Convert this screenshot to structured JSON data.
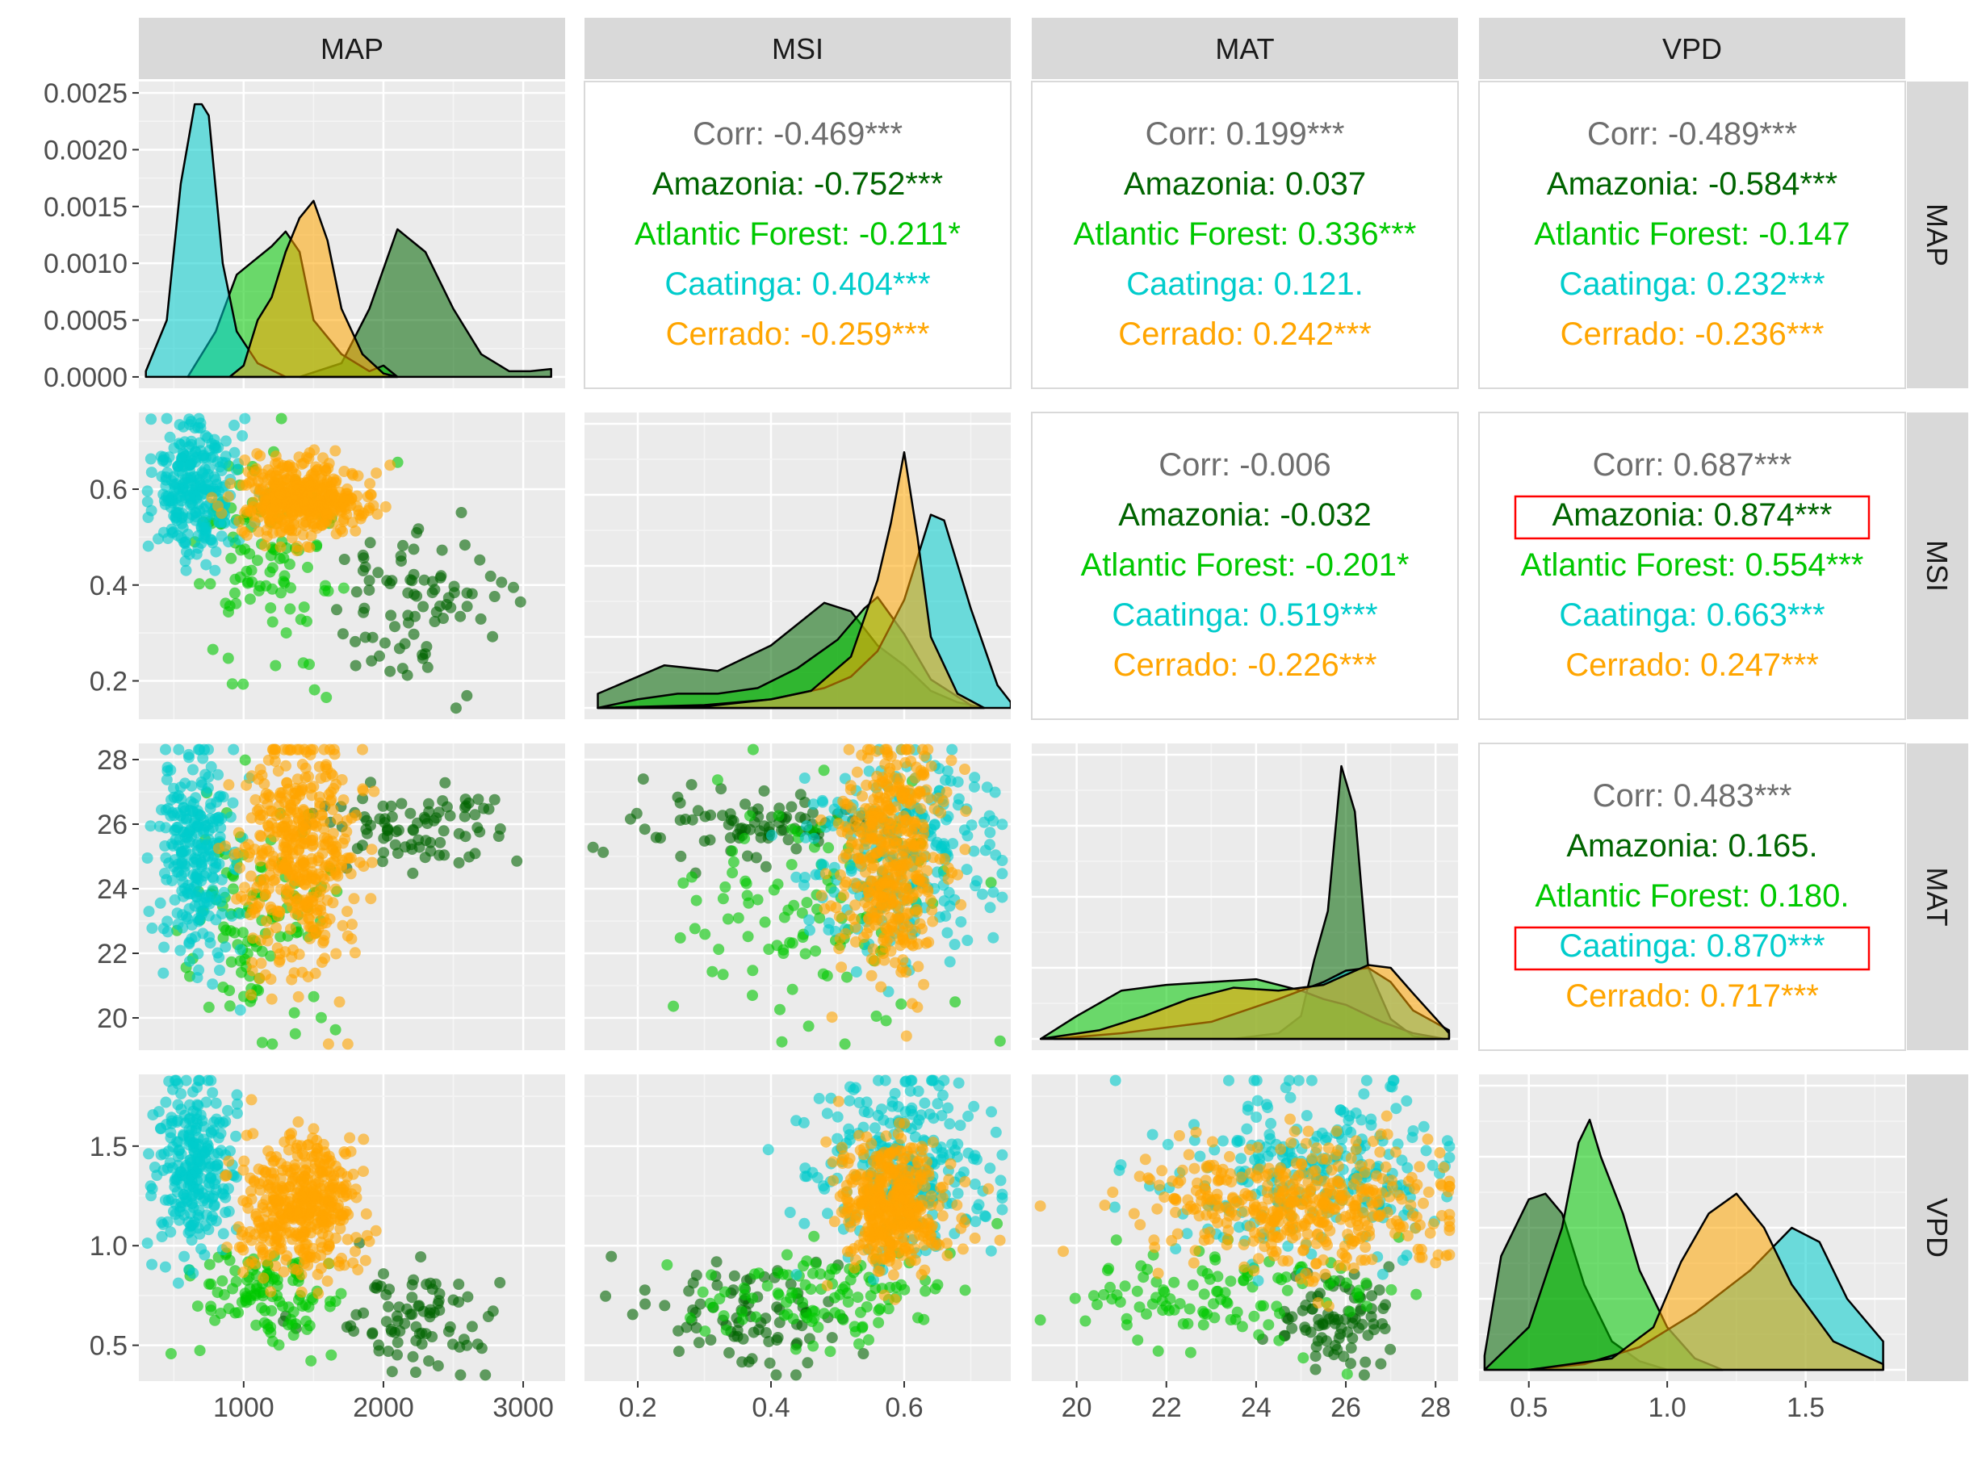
{
  "chart_data": {
    "type": "scatter",
    "variables": [
      "MAP",
      "MSI",
      "MAT",
      "VPD"
    ],
    "groups": [
      {
        "name": "Amazonia",
        "color": "#006400"
      },
      {
        "name": "Atlantic Forest",
        "color": "#00c800"
      },
      {
        "name": "Caatinga",
        "color": "#00cccc"
      },
      {
        "name": "Cerrado",
        "color": "#ffa500"
      }
    ],
    "corr_color": "#6e6e6e",
    "highlight_color": "#ff0000",
    "axes": {
      "MAP": {
        "lim": [
          250,
          3300
        ],
        "ticks": [
          1000,
          2000,
          3000
        ],
        "tick_labels": [
          "1000",
          "2000",
          "3000"
        ]
      },
      "MSI": {
        "lim": [
          0.12,
          0.76
        ],
        "ticks": [
          0.2,
          0.4,
          0.6
        ],
        "tick_labels": [
          "0.2",
          "0.4",
          "0.6"
        ]
      },
      "MAT": {
        "lim": [
          19.0,
          28.5
        ],
        "ticks": [
          20,
          22,
          24,
          26,
          28
        ],
        "tick_labels": [
          "20",
          "22",
          "24",
          "26",
          "28"
        ]
      },
      "VPD": {
        "lim": [
          0.32,
          1.86
        ],
        "ticks": [
          0.5,
          1.0,
          1.5
        ],
        "tick_labels": [
          "0.5",
          "1.0",
          "1.5"
        ]
      }
    },
    "density_axis": {
      "lim": [
        -0.0001,
        0.0026
      ],
      "ticks": [
        0,
        0.0005,
        0.001,
        0.0015,
        0.002,
        0.0025
      ],
      "tick_labels": [
        "0.0000",
        "0.0005",
        "0.0010",
        "0.0015",
        "0.0020",
        "0.0025"
      ]
    },
    "densities": {
      "MAP": {
        "Amazonia": [
          [
            1400,
            0
          ],
          [
            1700,
            0.00012
          ],
          [
            1900,
            0.0006
          ],
          [
            2100,
            0.0013
          ],
          [
            2300,
            0.0011
          ],
          [
            2500,
            0.0006
          ],
          [
            2700,
            0.0002
          ],
          [
            2900,
            5e-05
          ],
          [
            3050,
            5e-05
          ],
          [
            3200,
            7e-05
          ]
        ],
        "Atlantic Forest": [
          [
            600,
            0
          ],
          [
            800,
            0.0004
          ],
          [
            950,
            0.0009
          ],
          [
            1050,
            0.001
          ],
          [
            1200,
            0.00115
          ],
          [
            1300,
            0.00128
          ],
          [
            1400,
            0.0011
          ],
          [
            1500,
            0.0005
          ],
          [
            1700,
            0.0002
          ],
          [
            1900,
            5e-05
          ],
          [
            2000,
            0.0001
          ],
          [
            2100,
            0
          ]
        ],
        "Caatinga": [
          [
            300,
            5e-05
          ],
          [
            450,
            0.0005
          ],
          [
            550,
            0.0017
          ],
          [
            650,
            0.0024
          ],
          [
            700,
            0.0024
          ],
          [
            750,
            0.0023
          ],
          [
            850,
            0.001
          ],
          [
            950,
            0.0004
          ],
          [
            1100,
            0.00012
          ],
          [
            1300,
            0
          ]
        ],
        "Cerrado": [
          [
            900,
            0
          ],
          [
            1000,
            0.0001
          ],
          [
            1100,
            0.0005
          ],
          [
            1200,
            0.0007
          ],
          [
            1300,
            0.0011
          ],
          [
            1400,
            0.0014
          ],
          [
            1500,
            0.00155
          ],
          [
            1600,
            0.0012
          ],
          [
            1700,
            0.0006
          ],
          [
            1850,
            0.0002
          ],
          [
            2000,
            3e-05
          ],
          [
            2100,
            0
          ]
        ]
      },
      "MSI": {
        "Amazonia": [
          [
            0.14,
            0.05
          ],
          [
            0.24,
            0.15
          ],
          [
            0.32,
            0.13
          ],
          [
            0.4,
            0.22
          ],
          [
            0.48,
            0.37
          ],
          [
            0.52,
            0.34
          ],
          [
            0.56,
            0.22
          ],
          [
            0.6,
            0.15
          ],
          [
            0.64,
            0.06
          ],
          [
            0.68,
            0.02
          ],
          [
            0.72,
            0
          ]
        ],
        "Atlantic Forest": [
          [
            0.14,
            0
          ],
          [
            0.2,
            0.03
          ],
          [
            0.26,
            0.05
          ],
          [
            0.32,
            0.05
          ],
          [
            0.38,
            0.07
          ],
          [
            0.44,
            0.14
          ],
          [
            0.5,
            0.24
          ],
          [
            0.54,
            0.35
          ],
          [
            0.56,
            0.39
          ],
          [
            0.6,
            0.26
          ],
          [
            0.64,
            0.1
          ],
          [
            0.7,
            0.01
          ]
        ],
        "Caatinga": [
          [
            0.14,
            0
          ],
          [
            0.3,
            0.01
          ],
          [
            0.4,
            0.03
          ],
          [
            0.48,
            0.07
          ],
          [
            0.52,
            0.11
          ],
          [
            0.56,
            0.2
          ],
          [
            0.6,
            0.38
          ],
          [
            0.64,
            0.68
          ],
          [
            0.66,
            0.66
          ],
          [
            0.7,
            0.35
          ],
          [
            0.74,
            0.08
          ],
          [
            0.76,
            0.02
          ]
        ],
        "Cerrado": [
          [
            0.14,
            0
          ],
          [
            0.3,
            0.005
          ],
          [
            0.4,
            0.03
          ],
          [
            0.46,
            0.06
          ],
          [
            0.52,
            0.18
          ],
          [
            0.56,
            0.45
          ],
          [
            0.58,
            0.65
          ],
          [
            0.6,
            0.9
          ],
          [
            0.62,
            0.6
          ],
          [
            0.64,
            0.25
          ],
          [
            0.68,
            0.05
          ],
          [
            0.72,
            0
          ]
        ]
      },
      "MAT": {
        "Amazonia": [
          [
            23.5,
            0
          ],
          [
            24.5,
            0.02
          ],
          [
            25.0,
            0.08
          ],
          [
            25.3,
            0.28
          ],
          [
            25.6,
            0.45
          ],
          [
            25.9,
            0.96
          ],
          [
            26.2,
            0.8
          ],
          [
            26.5,
            0.25
          ],
          [
            27.0,
            0.07
          ],
          [
            27.5,
            0.01
          ],
          [
            28.0,
            0
          ]
        ],
        "Atlantic Forest": [
          [
            19.2,
            0
          ],
          [
            20.0,
            0.08
          ],
          [
            21.0,
            0.17
          ],
          [
            22.0,
            0.19
          ],
          [
            23.0,
            0.2
          ],
          [
            24.0,
            0.21
          ],
          [
            25.0,
            0.17
          ],
          [
            25.5,
            0.14
          ],
          [
            26.0,
            0.12
          ],
          [
            26.8,
            0.06
          ],
          [
            27.5,
            0.02
          ],
          [
            28.2,
            0
          ]
        ],
        "Caatinga": [
          [
            19.5,
            0
          ],
          [
            21.0,
            0.02
          ],
          [
            23.0,
            0.06
          ],
          [
            24.5,
            0.14
          ],
          [
            25.5,
            0.2
          ],
          [
            26.0,
            0.24
          ],
          [
            26.5,
            0.25
          ],
          [
            27.0,
            0.2
          ],
          [
            27.5,
            0.1
          ],
          [
            28.3,
            0.03
          ]
        ],
        "Cerrado": [
          [
            19.2,
            0
          ],
          [
            20.5,
            0.03
          ],
          [
            21.5,
            0.08
          ],
          [
            22.5,
            0.14
          ],
          [
            23.5,
            0.18
          ],
          [
            24.5,
            0.17
          ],
          [
            25.5,
            0.19
          ],
          [
            26.5,
            0.26
          ],
          [
            27.0,
            0.25
          ],
          [
            27.5,
            0.16
          ],
          [
            28.3,
            0.02
          ]
        ]
      },
      "VPD": {
        "Amazonia": [
          [
            0.34,
            0.05
          ],
          [
            0.4,
            0.4
          ],
          [
            0.5,
            0.6
          ],
          [
            0.56,
            0.62
          ],
          [
            0.62,
            0.55
          ],
          [
            0.7,
            0.3
          ],
          [
            0.8,
            0.1
          ],
          [
            0.9,
            0.03
          ],
          [
            1.0,
            0
          ]
        ],
        "Atlantic Forest": [
          [
            0.34,
            0
          ],
          [
            0.5,
            0.15
          ],
          [
            0.62,
            0.5
          ],
          [
            0.68,
            0.8
          ],
          [
            0.72,
            0.88
          ],
          [
            0.76,
            0.75
          ],
          [
            0.8,
            0.65
          ],
          [
            0.84,
            0.55
          ],
          [
            0.9,
            0.35
          ],
          [
            1.0,
            0.15
          ],
          [
            1.1,
            0.04
          ],
          [
            1.2,
            0
          ]
        ],
        "Caatinga": [
          [
            0.5,
            0
          ],
          [
            0.7,
            0.02
          ],
          [
            0.9,
            0.08
          ],
          [
            1.1,
            0.2
          ],
          [
            1.3,
            0.35
          ],
          [
            1.45,
            0.5
          ],
          [
            1.55,
            0.45
          ],
          [
            1.65,
            0.25
          ],
          [
            1.78,
            0.1
          ]
        ],
        "Cerrado": [
          [
            0.5,
            0
          ],
          [
            0.8,
            0.04
          ],
          [
            0.95,
            0.15
          ],
          [
            1.05,
            0.38
          ],
          [
            1.15,
            0.55
          ],
          [
            1.25,
            0.62
          ],
          [
            1.35,
            0.5
          ],
          [
            1.45,
            0.3
          ],
          [
            1.6,
            0.1
          ],
          [
            1.78,
            0.02
          ]
        ]
      }
    },
    "scatter_clusters": {
      "Amazonia": {
        "n": 85,
        "MAP": [
          2250,
          320
        ],
        "MSI": [
          0.36,
          0.09
        ],
        "MAT": [
          25.9,
          0.6
        ],
        "VPD": [
          0.62,
          0.14
        ]
      },
      "Atlantic Forest": {
        "n": 110,
        "MAP": [
          1150,
          280
        ],
        "MSI": [
          0.47,
          0.11
        ],
        "MAT": [
          23.3,
          1.8
        ],
        "VPD": [
          0.75,
          0.12
        ]
      },
      "Caatinga": {
        "n": 260,
        "MAP": [
          650,
          150
        ],
        "MSI": [
          0.6,
          0.07
        ],
        "MAT": [
          25.2,
          1.6
        ],
        "VPD": [
          1.4,
          0.22
        ]
      },
      "Cerrado": {
        "n": 420,
        "MAP": [
          1400,
          220
        ],
        "MSI": [
          0.58,
          0.04
        ],
        "MAT": [
          25.0,
          1.8
        ],
        "VPD": [
          1.2,
          0.17
        ]
      }
    },
    "correlations": [
      {
        "row": "MAP",
        "col": "MSI",
        "lines": [
          {
            "text": "Corr: -0.469***",
            "group": "Corr"
          },
          {
            "text": "Amazonia: -0.752***",
            "group": "Amazonia"
          },
          {
            "text": "Atlantic Forest: -0.211*",
            "group": "Atlantic Forest"
          },
          {
            "text": "Caatinga: 0.404***",
            "group": "Caatinga"
          },
          {
            "text": "Cerrado: -0.259***",
            "group": "Cerrado"
          }
        ]
      },
      {
        "row": "MAP",
        "col": "MAT",
        "lines": [
          {
            "text": "Corr: 0.199***",
            "group": "Corr"
          },
          {
            "text": "Amazonia: 0.037",
            "group": "Amazonia"
          },
          {
            "text": "Atlantic Forest: 0.336***",
            "group": "Atlantic Forest"
          },
          {
            "text": "Caatinga: 0.121.",
            "group": "Caatinga"
          },
          {
            "text": "Cerrado: 0.242***",
            "group": "Cerrado"
          }
        ]
      },
      {
        "row": "MAP",
        "col": "VPD",
        "lines": [
          {
            "text": "Corr: -0.489***",
            "group": "Corr"
          },
          {
            "text": "Amazonia: -0.584***",
            "group": "Amazonia"
          },
          {
            "text": "Atlantic Forest: -0.147",
            "group": "Atlantic Forest"
          },
          {
            "text": "Caatinga: 0.232***",
            "group": "Caatinga"
          },
          {
            "text": "Cerrado: -0.236***",
            "group": "Cerrado"
          }
        ]
      },
      {
        "row": "MSI",
        "col": "MAT",
        "lines": [
          {
            "text": "Corr: -0.006",
            "group": "Corr"
          },
          {
            "text": "Amazonia: -0.032",
            "group": "Amazonia"
          },
          {
            "text": "Atlantic Forest: -0.201*",
            "group": "Atlantic Forest"
          },
          {
            "text": "Caatinga: 0.519***",
            "group": "Caatinga"
          },
          {
            "text": "Cerrado: -0.226***",
            "group": "Cerrado"
          }
        ]
      },
      {
        "row": "MSI",
        "col": "VPD",
        "lines": [
          {
            "text": "Corr: 0.687***",
            "group": "Corr"
          },
          {
            "text": "Amazonia: 0.874***",
            "group": "Amazonia",
            "highlight": true
          },
          {
            "text": "Atlantic Forest: 0.554***",
            "group": "Atlantic Forest"
          },
          {
            "text": "Caatinga: 0.663***",
            "group": "Caatinga"
          },
          {
            "text": "Cerrado: 0.247***",
            "group": "Cerrado"
          }
        ]
      },
      {
        "row": "MAT",
        "col": "VPD",
        "lines": [
          {
            "text": "Corr: 0.483***",
            "group": "Corr"
          },
          {
            "text": "Amazonia: 0.165.",
            "group": "Amazonia"
          },
          {
            "text": "Atlantic Forest: 0.180.",
            "group": "Atlantic Forest"
          },
          {
            "text": "Caatinga: 0.870***",
            "group": "Caatinga",
            "highlight": true
          },
          {
            "text": "Cerrado: 0.717***",
            "group": "Cerrado"
          }
        ]
      }
    ],
    "grid": true,
    "legend": "none"
  }
}
